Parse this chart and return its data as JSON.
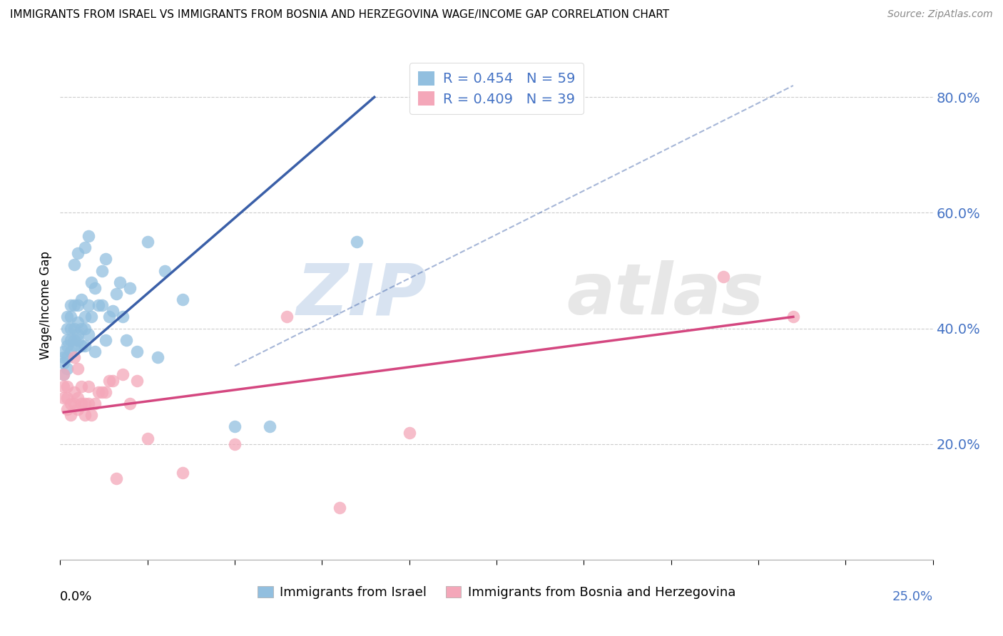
{
  "title": "IMMIGRANTS FROM ISRAEL VS IMMIGRANTS FROM BOSNIA AND HERZEGOVINA WAGE/INCOME GAP CORRELATION CHART",
  "source": "Source: ZipAtlas.com",
  "ylabel": "Wage/Income Gap",
  "y_ticks": [
    0.2,
    0.4,
    0.6,
    0.8
  ],
  "y_tick_labels": [
    "20.0%",
    "40.0%",
    "60.0%",
    "80.0%"
  ],
  "xlim": [
    0.0,
    0.25
  ],
  "ylim": [
    0.0,
    0.88
  ],
  "legend1_label": "R = 0.454   N = 59",
  "legend2_label": "R = 0.409   N = 39",
  "legend_bottom1": "Immigrants from Israel",
  "legend_bottom2": "Immigrants from Bosnia and Herzegovina",
  "color_blue": "#92BFDF",
  "color_pink": "#F4A7B9",
  "color_blue_line": "#3A5FA8",
  "color_pink_line": "#D44780",
  "color_blue_text": "#4472C4",
  "watermark_zip": "ZIP",
  "watermark_atlas": "atlas",
  "israel_x": [
    0.001,
    0.001,
    0.001,
    0.001,
    0.002,
    0.002,
    0.002,
    0.002,
    0.002,
    0.002,
    0.003,
    0.003,
    0.003,
    0.003,
    0.003,
    0.004,
    0.004,
    0.004,
    0.004,
    0.004,
    0.005,
    0.005,
    0.005,
    0.005,
    0.005,
    0.006,
    0.006,
    0.006,
    0.007,
    0.007,
    0.007,
    0.007,
    0.008,
    0.008,
    0.008,
    0.009,
    0.009,
    0.01,
    0.01,
    0.011,
    0.012,
    0.012,
    0.013,
    0.013,
    0.014,
    0.015,
    0.016,
    0.017,
    0.018,
    0.019,
    0.02,
    0.022,
    0.025,
    0.028,
    0.03,
    0.035,
    0.05,
    0.06,
    0.085
  ],
  "israel_y": [
    0.32,
    0.34,
    0.35,
    0.36,
    0.33,
    0.35,
    0.37,
    0.38,
    0.4,
    0.42,
    0.36,
    0.38,
    0.4,
    0.42,
    0.44,
    0.37,
    0.38,
    0.4,
    0.44,
    0.51,
    0.38,
    0.39,
    0.41,
    0.44,
    0.53,
    0.37,
    0.4,
    0.45,
    0.37,
    0.4,
    0.42,
    0.54,
    0.39,
    0.44,
    0.56,
    0.42,
    0.48,
    0.36,
    0.47,
    0.44,
    0.44,
    0.5,
    0.38,
    0.52,
    0.42,
    0.43,
    0.46,
    0.48,
    0.42,
    0.38,
    0.47,
    0.36,
    0.55,
    0.35,
    0.5,
    0.45,
    0.23,
    0.23,
    0.55
  ],
  "bosnia_x": [
    0.001,
    0.001,
    0.001,
    0.002,
    0.002,
    0.002,
    0.003,
    0.003,
    0.004,
    0.004,
    0.004,
    0.005,
    0.005,
    0.005,
    0.006,
    0.006,
    0.007,
    0.007,
    0.008,
    0.008,
    0.009,
    0.01,
    0.011,
    0.012,
    0.013,
    0.014,
    0.015,
    0.016,
    0.018,
    0.02,
    0.022,
    0.025,
    0.035,
    0.05,
    0.065,
    0.08,
    0.1,
    0.19,
    0.21
  ],
  "bosnia_y": [
    0.28,
    0.3,
    0.32,
    0.26,
    0.28,
    0.3,
    0.25,
    0.27,
    0.27,
    0.29,
    0.35,
    0.26,
    0.28,
    0.33,
    0.27,
    0.3,
    0.25,
    0.27,
    0.27,
    0.3,
    0.25,
    0.27,
    0.29,
    0.29,
    0.29,
    0.31,
    0.31,
    0.14,
    0.32,
    0.27,
    0.31,
    0.21,
    0.15,
    0.2,
    0.42,
    0.09,
    0.22,
    0.49,
    0.42
  ],
  "blue_line_x": [
    0.001,
    0.09
  ],
  "blue_line_y": [
    0.335,
    0.8
  ],
  "pink_line_x": [
    0.001,
    0.21
  ],
  "pink_line_y": [
    0.255,
    0.42
  ],
  "dash_line_x": [
    0.05,
    0.21
  ],
  "dash_line_y": [
    0.335,
    0.82
  ]
}
